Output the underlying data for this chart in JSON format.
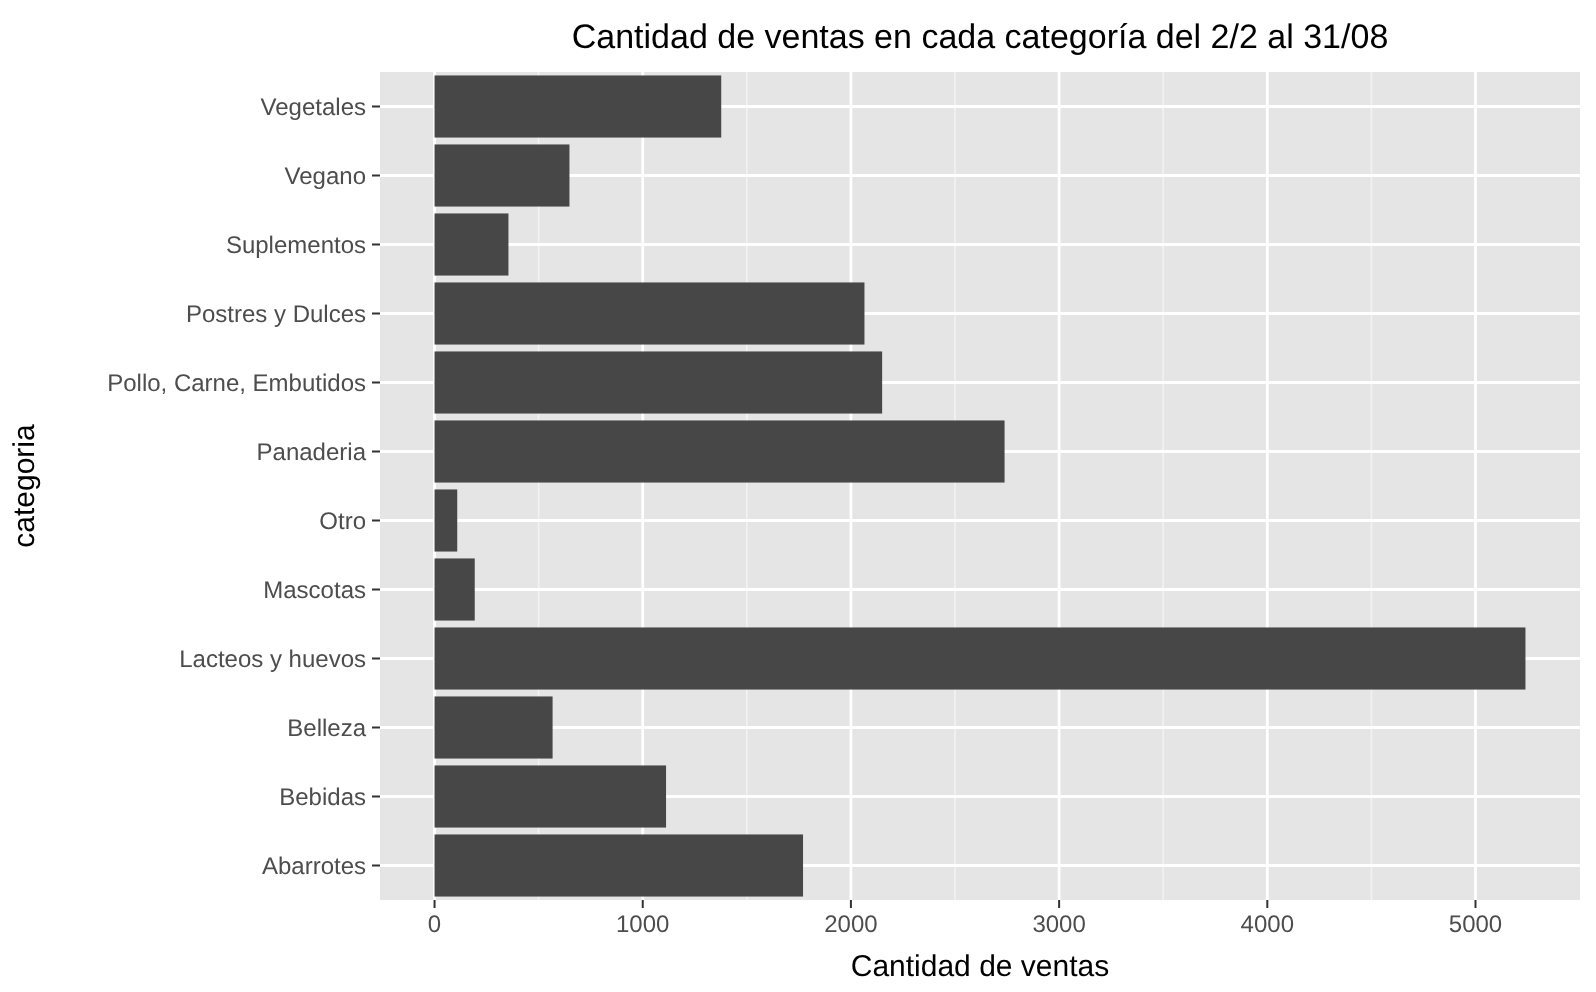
{
  "chart_data": {
    "type": "bar",
    "orientation": "horizontal",
    "title": "Cantidad de ventas en cada categoría del 2/2 al 31/08",
    "xlabel": "Cantidad de ventas",
    "ylabel": "categoria",
    "categories": [
      "Vegetales",
      "Vegano",
      "Suplementos",
      "Postres y Dulces",
      "Pollo, Carne, Embutidos",
      "Panaderia",
      "Otro",
      "Mascotas",
      "Lacteos y huevos",
      "Belleza",
      "Bebidas",
      "Abarrotes"
    ],
    "values": [
      1377,
      648,
      355,
      2065,
      2150,
      2738,
      109,
      193,
      5240,
      567,
      1112,
      1770
    ],
    "color": "#474747",
    "xlim": [
      -262,
      5502
    ],
    "xticks": [
      0,
      1000,
      2000,
      3000,
      4000,
      5000
    ],
    "grid": true
  }
}
